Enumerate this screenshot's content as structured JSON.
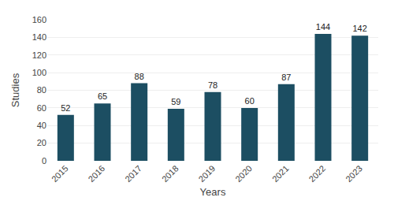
{
  "chart_data": {
    "type": "bar",
    "categories": [
      "2015",
      "2016",
      "2017",
      "2018",
      "2019",
      "2020",
      "2021",
      "2022",
      "2023"
    ],
    "values": [
      52,
      65,
      88,
      59,
      78,
      60,
      87,
      144,
      142
    ],
    "color": "#1c4e62",
    "xlabel": "Years",
    "ylabel": "Studies",
    "ylim": [
      0,
      160
    ],
    "yticks": [
      0,
      20,
      40,
      60,
      80,
      100,
      120,
      140,
      160
    ],
    "grid": true,
    "data_labels": true
  }
}
